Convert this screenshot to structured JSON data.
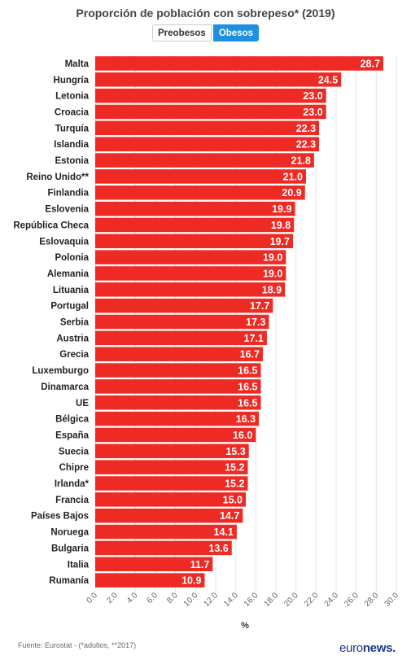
{
  "title": "Proporción de población con sobrepeso* (2019)",
  "toggle": {
    "options": [
      "Preobesos",
      "Obesos"
    ],
    "active": "Obesos"
  },
  "chart_data": {
    "type": "bar",
    "orientation": "horizontal",
    "categories": [
      "Malta",
      "Hungría",
      "Letonia",
      "Croacia",
      "Turquía",
      "Islandia",
      "Estonia",
      "Reino Unido**",
      "Finlandia",
      "Eslovenia",
      "República Checa",
      "Eslovaquia",
      "Polonia",
      "Alemania",
      "Lituania",
      "Portugal",
      "Serbia",
      "Austria",
      "Grecia",
      "Luxemburgo",
      "Dinamarca",
      "UE",
      "Bélgica",
      "España",
      "Suecia",
      "Chipre",
      "Irlanda*",
      "Francia",
      "Países Bajos",
      "Noruega",
      "Bulgaria",
      "Italia",
      "Rumanía"
    ],
    "values": [
      28.7,
      24.5,
      23.0,
      23.0,
      22.3,
      22.3,
      21.8,
      21.0,
      20.9,
      19.9,
      19.8,
      19.7,
      19.0,
      19.0,
      18.9,
      17.7,
      17.3,
      17.1,
      16.7,
      16.5,
      16.5,
      16.5,
      16.3,
      16.0,
      15.3,
      15.2,
      15.2,
      15.0,
      14.7,
      14.1,
      13.6,
      11.7,
      10.9
    ],
    "value_labels": [
      "28.7",
      "24.5",
      "23.0",
      "23.0",
      "22.3",
      "22.3",
      "21.8",
      "21.0",
      "20.9",
      "19.9",
      "19.8",
      "19.7",
      "19.0",
      "19.0",
      "18.9",
      "17.7",
      "17.3",
      "17.1",
      "16.7",
      "16.5",
      "16.5",
      "16.5",
      "16.3",
      "16.0",
      "15.3",
      "15.2",
      "15.2",
      "15.0",
      "14.7",
      "14.1",
      "13.6",
      "11.7",
      "10.9"
    ],
    "xlim": [
      0,
      30
    ],
    "xticks": [
      "0.0",
      "2.0",
      "4.0",
      "6.0",
      "8.0",
      "10.0",
      "12.0",
      "14.0",
      "16.0",
      "18.0",
      "20.0",
      "22.0",
      "24.0",
      "26.0",
      "28.0",
      "30.0"
    ],
    "xlabel": "%",
    "bar_color": "#ee2a24",
    "grid": true
  },
  "source": "Fuente: Eurostat - (*adultos, **2017)",
  "brand": {
    "part1": "euro",
    "part2": "news."
  }
}
